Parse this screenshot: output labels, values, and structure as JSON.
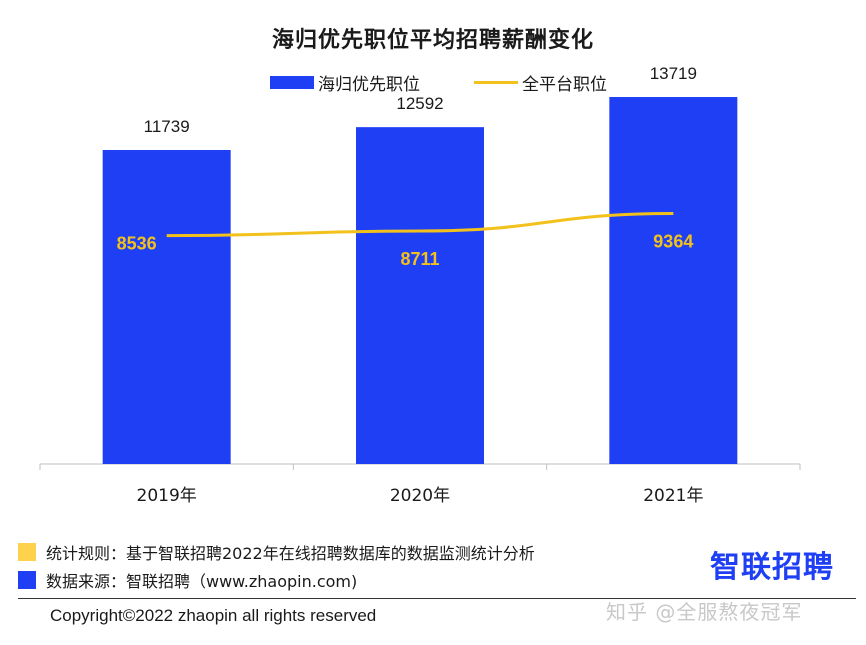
{
  "chart_data": {
    "type": "bar",
    "title": "海归优先职位平均招聘薪酬变化",
    "categories": [
      "2019年",
      "2020年",
      "2021年"
    ],
    "series": [
      {
        "name": "海归优先职位",
        "kind": "bar",
        "color": "#1f3ff5",
        "values": [
          11739,
          12592,
          13719
        ]
      },
      {
        "name": "全平台职位",
        "kind": "line",
        "color": "#f2c11b",
        "values": [
          8536,
          8711,
          9364
        ]
      }
    ],
    "ylim": [
      0,
      16000
    ],
    "grid": false,
    "legend_position": "top"
  },
  "notes": {
    "rule": "统计规则：基于智联招聘2022年在线招聘数据库的数据监测统计分析",
    "rule_color": "#ffd24d",
    "source": "数据来源：智联招聘（www.zhaopin.com)",
    "source_color": "#1f3ff5"
  },
  "brand_logo": "智联招聘",
  "copyright": "Copyright©2022 zhaopin all rights reserved",
  "watermark": "知乎 @全服熬夜冠军"
}
